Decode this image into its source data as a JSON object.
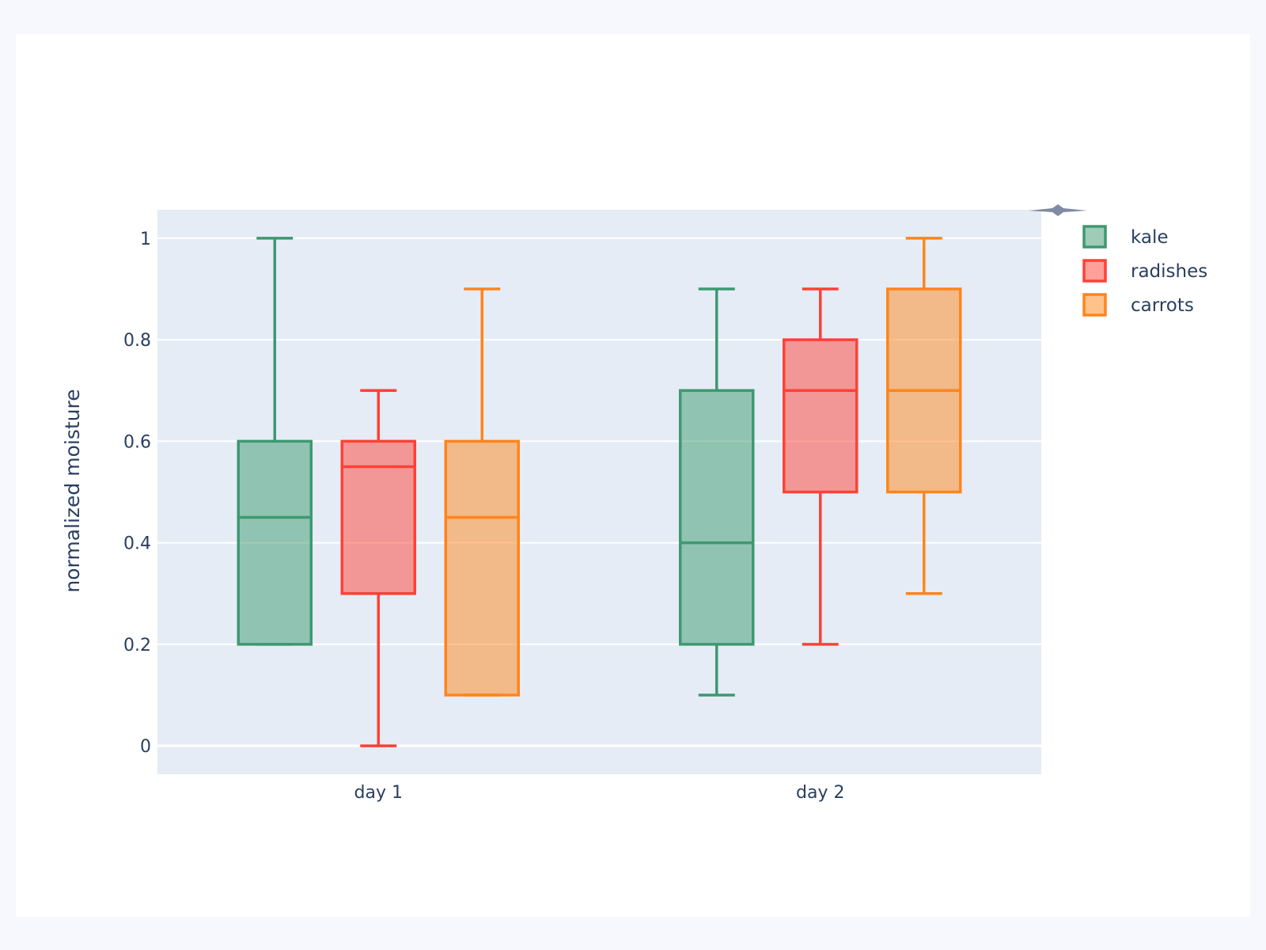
{
  "chart_data": {
    "type": "box",
    "title": "",
    "xlabel": "",
    "ylabel": "normalized moisture",
    "categories": [
      "day 1",
      "day 2"
    ],
    "ylim": [
      -0.056,
      1.056
    ],
    "yticks": [
      0,
      0.2,
      0.4,
      0.6,
      0.8,
      1
    ],
    "ytick_labels": [
      "0",
      "0.2",
      "0.4",
      "0.6",
      "0.8",
      "1"
    ],
    "grid": true,
    "legend_position": "top-right",
    "boxmode": "group",
    "series": [
      {
        "name": "kale",
        "color": "#3D9970",
        "boxes": [
          {
            "min": 0.2,
            "q1": 0.2,
            "median": 0.45,
            "q3": 0.6,
            "max": 1.0
          },
          {
            "min": 0.1,
            "q1": 0.2,
            "median": 0.4,
            "q3": 0.7,
            "max": 0.9
          }
        ]
      },
      {
        "name": "radishes",
        "color": "#FF4136",
        "boxes": [
          {
            "min": 0.0,
            "q1": 0.3,
            "median": 0.55,
            "q3": 0.6,
            "max": 0.7
          },
          {
            "min": 0.2,
            "q1": 0.5,
            "median": 0.7,
            "q3": 0.8,
            "max": 0.9
          }
        ]
      },
      {
        "name": "carrots",
        "color": "#FF851B",
        "boxes": [
          {
            "min": 0.1,
            "q1": 0.1,
            "median": 0.45,
            "q3": 0.6,
            "max": 0.9
          },
          {
            "min": 0.3,
            "q1": 0.5,
            "median": 0.7,
            "q3": 0.9,
            "max": 1.0
          }
        ]
      }
    ],
    "plot_background": "#E5ECF6"
  }
}
